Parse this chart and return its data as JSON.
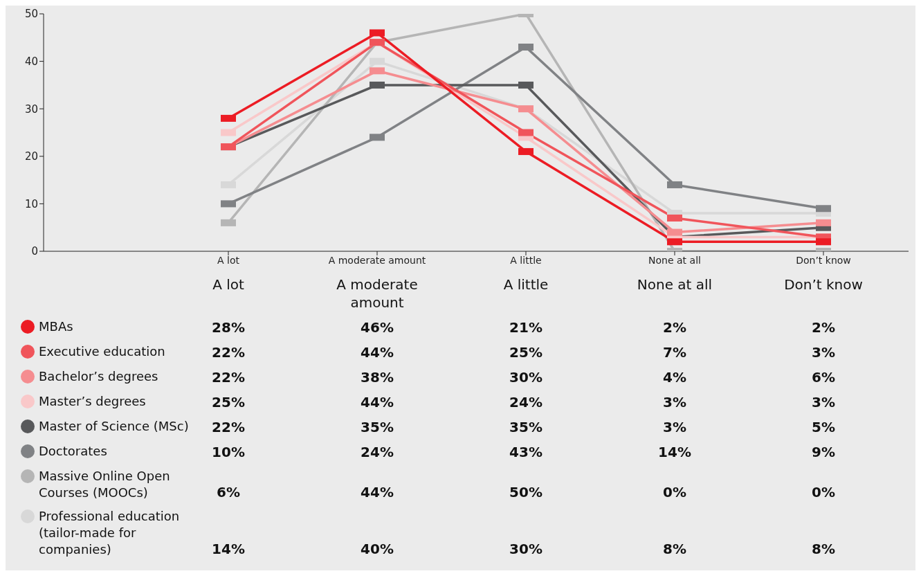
{
  "chart_data": {
    "type": "line",
    "categories": [
      "A lot",
      "A moderate amount",
      "A little",
      "None at all",
      "Don’t know"
    ],
    "ylim": [
      0,
      50
    ],
    "yticks": [
      0,
      10,
      20,
      30,
      40,
      50
    ],
    "grid": false,
    "legend": "bottom",
    "marker": "square",
    "line_style": "solid",
    "series": [
      {
        "name": "MBAs",
        "color": "#ec1c24",
        "values": [
          28,
          46,
          21,
          2,
          2
        ],
        "value_labels": [
          "28%",
          "46%",
          "21%",
          "2%",
          "2%"
        ]
      },
      {
        "name": "Executive education",
        "color": "#f0555b",
        "values": [
          22,
          44,
          25,
          7,
          3
        ],
        "value_labels": [
          "22%",
          "44%",
          "25%",
          "7%",
          "3%"
        ]
      },
      {
        "name": "Bachelor’s degrees",
        "color": "#f58d90",
        "values": [
          22,
          38,
          30,
          4,
          6
        ],
        "value_labels": [
          "22%",
          "38%",
          "30%",
          "4%",
          "6%"
        ]
      },
      {
        "name": "Master’s degrees",
        "color": "#f9c8c9",
        "values": [
          25,
          44,
          24,
          3,
          3
        ],
        "value_labels": [
          "25%",
          "44%",
          "24%",
          "3%",
          "3%"
        ]
      },
      {
        "name": "Master of Science (MSc)",
        "color": "#58595b",
        "values": [
          22,
          35,
          35,
          3,
          5
        ],
        "value_labels": [
          "22%",
          "35%",
          "35%",
          "3%",
          "5%"
        ]
      },
      {
        "name": "Doctorates",
        "color": "#808285",
        "values": [
          10,
          24,
          43,
          14,
          9
        ],
        "value_labels": [
          "10%",
          "24%",
          "43%",
          "14%",
          "9%"
        ]
      },
      {
        "name": "Massive Online Open Courses (MOOCs)",
        "color": "#b5b5b5",
        "values": [
          6,
          44,
          50,
          0,
          0
        ],
        "value_labels": [
          "6%",
          "44%",
          "50%",
          "0%",
          "0%"
        ]
      },
      {
        "name": "Professional education (tailor-made for companies)",
        "color": "#d8d8d8",
        "values": [
          14,
          40,
          30,
          8,
          8
        ],
        "value_labels": [
          "14%",
          "40%",
          "30%",
          "8%",
          "8%"
        ]
      }
    ]
  }
}
